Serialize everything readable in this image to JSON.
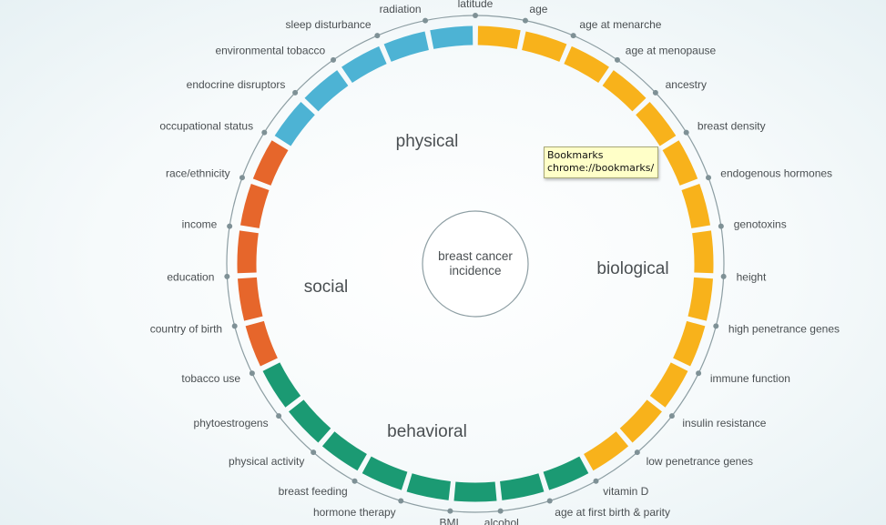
{
  "center": {
    "line1": "breast cancer",
    "line2": "incidence"
  },
  "colors": {
    "biological": "#f8b21b",
    "behavioral": "#1b9a73",
    "social": "#e6662b",
    "physical": "#4db3d4",
    "outline": "#8d9ea3"
  },
  "categories": [
    {
      "key": "physical",
      "label": "physical"
    },
    {
      "key": "biological",
      "label": "biological"
    },
    {
      "key": "behavioral",
      "label": "behavioral"
    },
    {
      "key": "social",
      "label": "social"
    }
  ],
  "factors": [
    {
      "label": "age",
      "category": "biological"
    },
    {
      "label": "age at menarche",
      "category": "biological"
    },
    {
      "label": "age at menopause",
      "category": "biological"
    },
    {
      "label": "ancestry",
      "category": "biological"
    },
    {
      "label": "breast density",
      "category": "biological"
    },
    {
      "label": "endogenous hormones",
      "category": "biological"
    },
    {
      "label": "genotoxins",
      "category": "biological"
    },
    {
      "label": "height",
      "category": "biological"
    },
    {
      "label": "high penetrance genes",
      "category": "biological"
    },
    {
      "label": "immune function",
      "category": "biological"
    },
    {
      "label": "insulin resistance",
      "category": "biological"
    },
    {
      "label": "low penetrance genes",
      "category": "biological"
    },
    {
      "label": "vitamin D",
      "category": "biological"
    },
    {
      "label": "age at first birth & parity",
      "category": "behavioral"
    },
    {
      "label": "alcohol",
      "category": "behavioral"
    },
    {
      "label": "BMI",
      "category": "behavioral"
    },
    {
      "label": "hormone therapy",
      "category": "behavioral"
    },
    {
      "label": "breast feeding",
      "category": "behavioral"
    },
    {
      "label": "physical activity",
      "category": "behavioral"
    },
    {
      "label": "phytoestrogens",
      "category": "behavioral"
    },
    {
      "label": "tobacco use",
      "category": "behavioral"
    },
    {
      "label": "country of birth",
      "category": "social"
    },
    {
      "label": "education",
      "category": "social"
    },
    {
      "label": "income",
      "category": "social"
    },
    {
      "label": "race/ethnicity",
      "category": "social"
    },
    {
      "label": "occupational status",
      "category": "social"
    },
    {
      "label": "endocrine disruptors",
      "category": "physical"
    },
    {
      "label": "environmental tobacco",
      "category": "physical"
    },
    {
      "label": "sleep disturbance",
      "category": "physical"
    },
    {
      "label": "radiation",
      "category": "physical"
    },
    {
      "label": "latitude",
      "category": "physical"
    }
  ],
  "tooltip": {
    "line1": "Bookmarks",
    "line2": "chrome://bookmarks/"
  }
}
